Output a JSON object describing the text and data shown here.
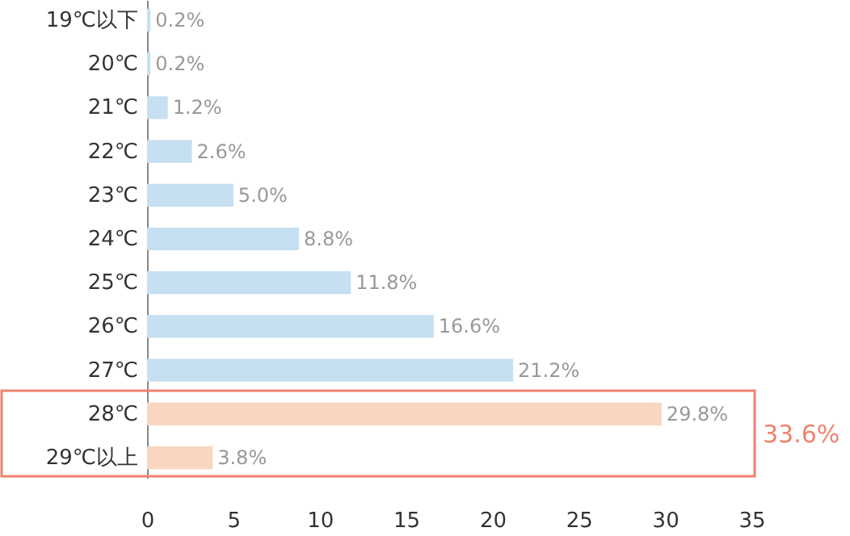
{
  "chart_data": {
    "type": "bar",
    "orientation": "horizontal",
    "categories": [
      "19℃以下",
      "20℃",
      "21℃",
      "22℃",
      "23℃",
      "24℃",
      "25℃",
      "26℃",
      "27℃",
      "28℃",
      "29℃以上"
    ],
    "values": [
      0.2,
      0.2,
      1.2,
      2.6,
      5.0,
      8.8,
      11.8,
      16.6,
      21.2,
      29.8,
      3.8
    ],
    "colors": [
      "#c6dff1",
      "#c6dff1",
      "#c6dff1",
      "#c6dff1",
      "#c6dff1",
      "#c6dff1",
      "#c6dff1",
      "#c6dff1",
      "#c6dff1",
      "#f8d6bf",
      "#f8d6bf"
    ],
    "value_labels": [
      "0.2%",
      "0.2%",
      "1.2%",
      "2.6%",
      "5.0%",
      "8.8%",
      "11.8%",
      "16.6%",
      "21.2%",
      "29.8%",
      "3.8%"
    ],
    "xlim": [
      0,
      35
    ],
    "xticks": [
      0,
      5,
      10,
      15,
      20,
      25,
      30,
      35
    ],
    "annotations": [
      "33.6%"
    ],
    "grid": false
  }
}
